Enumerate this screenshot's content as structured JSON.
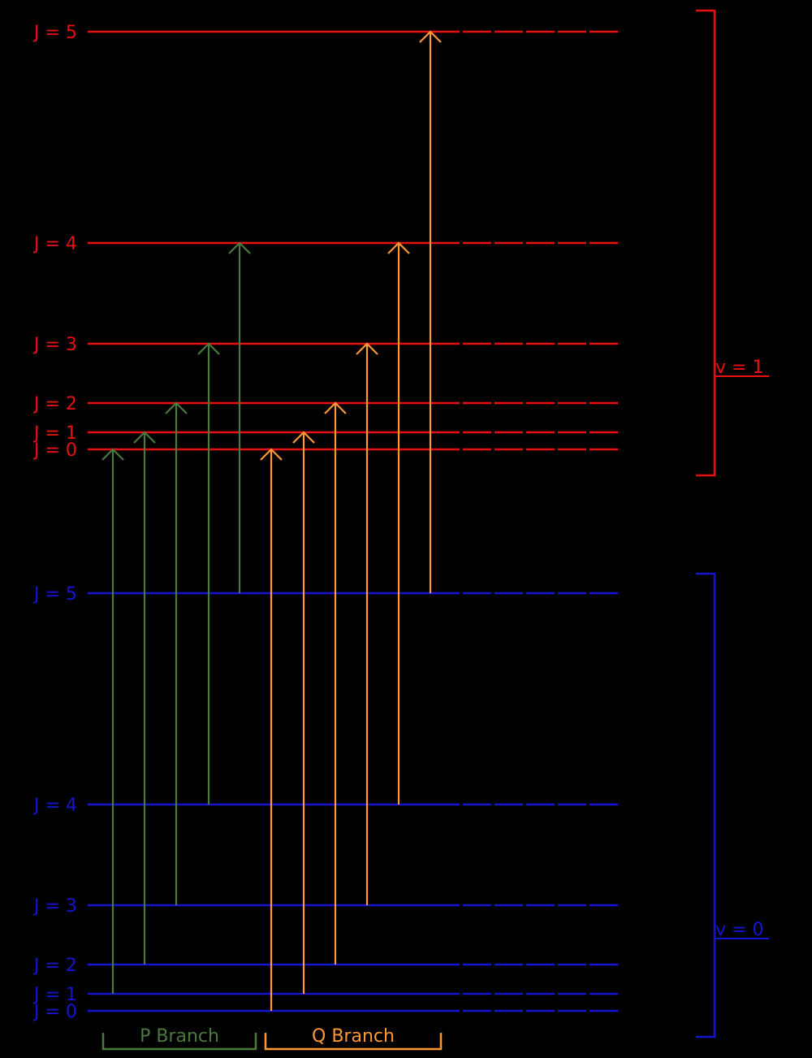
{
  "colors": {
    "background": "#000000",
    "upper_state": "#e81010",
    "lower_state": "#1414d2",
    "p_branch": "#4a7a3e",
    "q_branch": "#ff9933",
    "dash_overlay": "#000000"
  },
  "upper_levels": {
    "vib_label": "v = 1",
    "levels": [
      {
        "j": 5,
        "label": "J = 5"
      },
      {
        "j": 4,
        "label": "J = 4"
      },
      {
        "j": 3,
        "label": "J = 3"
      },
      {
        "j": 2,
        "label": "J = 2"
      },
      {
        "j": 1,
        "label": "J = 1"
      },
      {
        "j": 0,
        "label": "J = 0"
      }
    ]
  },
  "lower_levels": {
    "vib_label": "v = 0",
    "levels": [
      {
        "j": 5,
        "label": "J = 5"
      },
      {
        "j": 4,
        "label": "J = 4"
      },
      {
        "j": 3,
        "label": "J = 3"
      },
      {
        "j": 2,
        "label": "J = 2"
      },
      {
        "j": 1,
        "label": "J = 1"
      },
      {
        "j": 0,
        "label": "J = 0"
      }
    ]
  },
  "branches": {
    "p_branch": {
      "label": "P Branch",
      "transitions": [
        {
          "from_j": 1,
          "to_j": 0
        },
        {
          "from_j": 2,
          "to_j": 1
        },
        {
          "from_j": 3,
          "to_j": 2
        },
        {
          "from_j": 4,
          "to_j": 3
        },
        {
          "from_j": 5,
          "to_j": 4
        }
      ]
    },
    "q_branch": {
      "label": "Q Branch",
      "transitions": [
        {
          "from_j": 0,
          "to_j": 0
        },
        {
          "from_j": 1,
          "to_j": 1
        },
        {
          "from_j": 2,
          "to_j": 2
        },
        {
          "from_j": 3,
          "to_j": 3
        },
        {
          "from_j": 4,
          "to_j": 4
        },
        {
          "from_j": 5,
          "to_j": 5
        }
      ]
    }
  }
}
